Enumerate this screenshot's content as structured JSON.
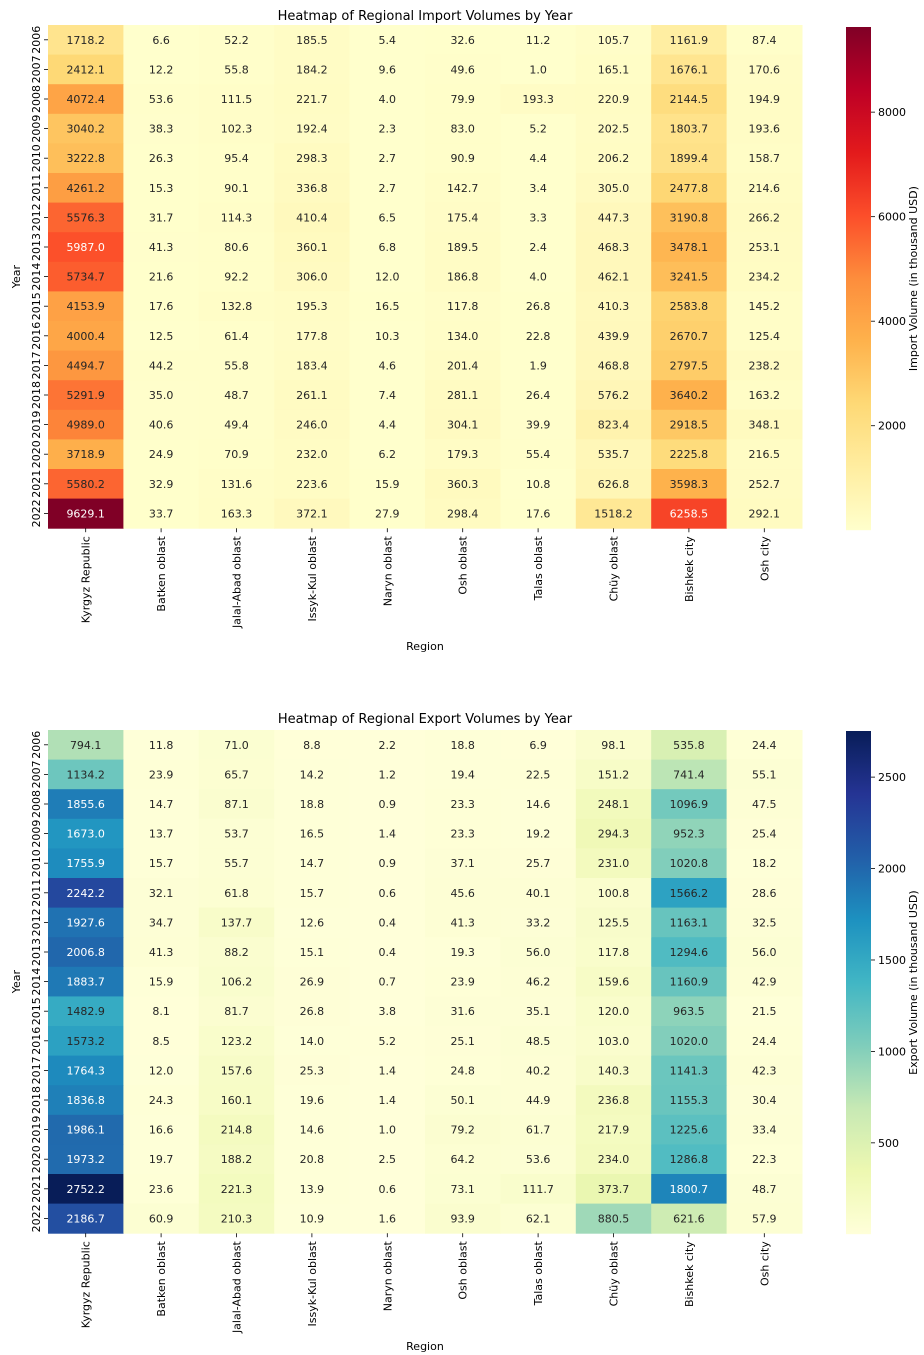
{
  "chart_data": [
    {
      "type": "heatmap",
      "title": "Heatmap of Regional Import Volumes by Year",
      "xlabel": "Region",
      "ylabel": "Year",
      "colorbar_label": "Import Volume (in thousand USD)",
      "colorbar_ticks": [
        2000,
        4000,
        6000,
        8000
      ],
      "colormap": "YlOrRd",
      "vmin": 1.0,
      "vmax": 9629.1,
      "regions": [
        "Kyrgyz Republic",
        "Batken oblast",
        "Jalal-Abad oblast",
        "Issyk-Kul oblast",
        "Naryn oblast",
        "Osh oblast",
        "Talas oblast",
        "Chüy oblast",
        "Bishkek city",
        "Osh city"
      ],
      "years": [
        "2006",
        "2007",
        "2008",
        "2009",
        "2010",
        "2011",
        "2012",
        "2013",
        "2014",
        "2015",
        "2016",
        "2017",
        "2018",
        "2019",
        "2020",
        "2021",
        "2022"
      ],
      "values": [
        [
          1718.2,
          6.6,
          52.2,
          185.5,
          5.4,
          32.6,
          11.2,
          105.7,
          1161.9,
          87.4
        ],
        [
          2412.1,
          12.2,
          55.8,
          184.2,
          9.6,
          49.6,
          1.0,
          165.1,
          1676.1,
          170.6
        ],
        [
          4072.4,
          53.6,
          111.5,
          221.7,
          4.0,
          79.9,
          193.3,
          220.9,
          2144.5,
          194.9
        ],
        [
          3040.2,
          38.3,
          102.3,
          192.4,
          2.3,
          83.0,
          5.2,
          202.5,
          1803.7,
          193.6
        ],
        [
          3222.8,
          26.3,
          95.4,
          298.3,
          2.7,
          90.9,
          4.4,
          206.2,
          1899.4,
          158.7
        ],
        [
          4261.2,
          15.3,
          90.1,
          336.8,
          2.7,
          142.7,
          3.4,
          305.0,
          2477.8,
          214.6
        ],
        [
          5576.3,
          31.7,
          114.3,
          410.4,
          6.5,
          175.4,
          3.3,
          447.3,
          3190.8,
          266.2
        ],
        [
          5987.0,
          41.3,
          80.6,
          360.1,
          6.8,
          189.5,
          2.4,
          468.3,
          3478.1,
          253.1
        ],
        [
          5734.7,
          21.6,
          92.2,
          306.0,
          12.0,
          186.8,
          4.0,
          462.1,
          3241.5,
          234.2
        ],
        [
          4153.9,
          17.6,
          132.8,
          195.3,
          16.5,
          117.8,
          26.8,
          410.3,
          2583.8,
          145.2
        ],
        [
          4000.4,
          12.5,
          61.4,
          177.8,
          10.3,
          134.0,
          22.8,
          439.9,
          2670.7,
          125.4
        ],
        [
          4494.7,
          44.2,
          55.8,
          183.4,
          4.6,
          201.4,
          1.9,
          468.8,
          2797.5,
          238.2
        ],
        [
          5291.9,
          35.0,
          48.7,
          261.1,
          7.4,
          281.1,
          26.4,
          576.2,
          3640.2,
          163.2
        ],
        [
          4989.0,
          40.6,
          49.4,
          246.0,
          4.4,
          304.1,
          39.9,
          823.4,
          2918.5,
          348.1
        ],
        [
          3718.9,
          24.9,
          70.9,
          232.0,
          6.2,
          179.3,
          55.4,
          535.7,
          2225.8,
          216.5
        ],
        [
          5580.2,
          32.9,
          131.6,
          223.6,
          15.9,
          360.3,
          10.8,
          626.8,
          3598.3,
          252.7
        ],
        [
          9629.1,
          33.7,
          163.3,
          372.1,
          27.9,
          298.4,
          17.6,
          1518.2,
          6258.5,
          292.1
        ]
      ]
    },
    {
      "type": "heatmap",
      "title": "Heatmap of Regional Export Volumes by Year",
      "xlabel": "Region",
      "ylabel": "Year",
      "colorbar_label": "Export Volume (in thousand USD)",
      "colorbar_ticks": [
        500,
        1000,
        1500,
        2000,
        2500
      ],
      "colormap": "YlGnBu",
      "vmin": 0.4,
      "vmax": 2752.2,
      "regions": [
        "Kyrgyz Republic",
        "Batken oblast",
        "Jalal-Abad oblast",
        "Issyk-Kul oblast",
        "Naryn oblast",
        "Osh oblast",
        "Talas oblast",
        "Chüy oblast",
        "Bishkek city",
        "Osh city"
      ],
      "years": [
        "2006",
        "2007",
        "2008",
        "2009",
        "2010",
        "2011",
        "2012",
        "2013",
        "2014",
        "2015",
        "2016",
        "2017",
        "2018",
        "2019",
        "2020",
        "2021",
        "2022"
      ],
      "values": [
        [
          794.1,
          11.8,
          71.0,
          8.8,
          2.2,
          18.8,
          6.9,
          98.1,
          535.8,
          24.4
        ],
        [
          1134.2,
          23.9,
          65.7,
          14.2,
          1.2,
          19.4,
          22.5,
          151.2,
          741.4,
          55.1
        ],
        [
          1855.6,
          14.7,
          87.1,
          18.8,
          0.9,
          23.3,
          14.6,
          248.1,
          1096.9,
          47.5
        ],
        [
          1673.0,
          13.7,
          53.7,
          16.5,
          1.4,
          23.3,
          19.2,
          294.3,
          952.3,
          25.4
        ],
        [
          1755.9,
          15.7,
          55.7,
          14.7,
          0.9,
          37.1,
          25.7,
          231.0,
          1020.8,
          18.2
        ],
        [
          2242.2,
          32.1,
          61.8,
          15.7,
          0.6,
          45.6,
          40.1,
          100.8,
          1566.2,
          28.6
        ],
        [
          1927.6,
          34.7,
          137.7,
          12.6,
          0.4,
          41.3,
          33.2,
          125.5,
          1163.1,
          32.5
        ],
        [
          2006.8,
          41.3,
          88.2,
          15.1,
          0.4,
          19.3,
          56.0,
          117.8,
          1294.6,
          56.0
        ],
        [
          1883.7,
          15.9,
          106.2,
          26.9,
          0.7,
          23.9,
          46.2,
          159.6,
          1160.9,
          42.9
        ],
        [
          1482.9,
          8.1,
          81.7,
          26.8,
          3.8,
          31.6,
          35.1,
          120.0,
          963.5,
          21.5
        ],
        [
          1573.2,
          8.5,
          123.2,
          14.0,
          5.2,
          25.1,
          48.5,
          103.0,
          1020.0,
          24.4
        ],
        [
          1764.3,
          12.0,
          157.6,
          25.3,
          1.4,
          24.8,
          40.2,
          140.3,
          1141.3,
          42.3
        ],
        [
          1836.8,
          24.3,
          160.1,
          19.6,
          1.4,
          50.1,
          44.9,
          236.8,
          1155.3,
          30.4
        ],
        [
          1986.1,
          16.6,
          214.8,
          14.6,
          1.0,
          79.2,
          61.7,
          217.9,
          1225.6,
          33.4
        ],
        [
          1973.2,
          19.7,
          188.2,
          20.8,
          2.5,
          64.2,
          53.6,
          234.0,
          1286.8,
          22.3
        ],
        [
          2752.2,
          23.6,
          221.3,
          13.9,
          0.6,
          73.1,
          111.7,
          373.7,
          1800.7,
          48.7
        ],
        [
          2186.7,
          60.9,
          210.3,
          10.9,
          1.6,
          93.9,
          62.1,
          880.5,
          621.6,
          57.9
        ]
      ]
    }
  ]
}
